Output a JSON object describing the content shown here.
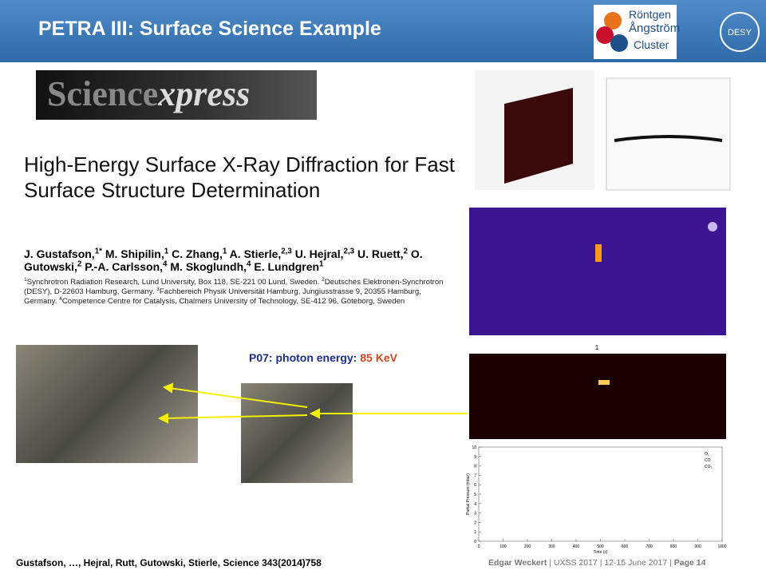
{
  "header": {
    "title": "PETRA III: Surface Science Example",
    "logo": [
      "Röntgen",
      "Ångström",
      "Cluster"
    ],
    "desy": "DESY"
  },
  "journal": {
    "name": "Science",
    "suffix": "xpress"
  },
  "paper": {
    "title": "High-Energy Surface X-Ray Diffraction for Fast Surface Structure Determination",
    "authors": [
      [
        "J. Gustafson,",
        "1*"
      ],
      [
        " M. Shipilin,",
        "1"
      ],
      [
        " C. Zhang,",
        "1"
      ],
      [
        " A. Stierle,",
        "2,3"
      ],
      [
        " U. Hejral,",
        "2,3"
      ],
      [
        " U. Ruett,",
        "2"
      ],
      [
        " O. Gutowski,",
        "2"
      ],
      [
        " P.-A. Carlsson,",
        "4"
      ],
      [
        " M. Skoglundh,",
        "4"
      ],
      [
        " E. Lundgren",
        "1"
      ]
    ],
    "affiliations": [
      [
        "1",
        "Synchrotron Radiation Research, Lund University, Box 118, SE-221 00 Lund, Sweden. "
      ],
      [
        "2",
        "Deutsches Elektronen-Synchrotron (DESY), D-22603 Hamburg, Germany. "
      ],
      [
        "3",
        "Fachbereich Physik Universität Hamburg, Jungiusstrasse 9, 20355 Hamburg, Germany. "
      ],
      [
        "4",
        "Competence Centre for Catalysis, Chalmers University of Technology, SE-412 96, Göteborg, Sweden"
      ]
    ]
  },
  "beamline": {
    "label": "P07: photon energy:",
    "energy": "85 KeV"
  },
  "detector_label": "1",
  "plot": {
    "xlabel": "Time (s)",
    "ylabel": "Partial Pressure (mbar)",
    "xlim": [
      0,
      1000
    ],
    "ylim": [
      0,
      10
    ],
    "xticks": [
      0,
      100,
      200,
      300,
      400,
      500,
      600,
      700,
      800,
      900,
      1000
    ],
    "yticks": [
      0,
      1,
      2,
      3,
      4,
      5,
      6,
      7,
      8,
      9,
      10
    ],
    "legend": [
      "O₂",
      "CO",
      "CO₂"
    ]
  },
  "footer": {
    "citation": "Gustafson, …, Hejral,  Rutt, Gutowski, Stierle, Science 343(2014)758",
    "presenter": "Edgar Weckert",
    "event": "UXSS 2017",
    "date": "12-15 June 2017",
    "page": "Page 14"
  }
}
